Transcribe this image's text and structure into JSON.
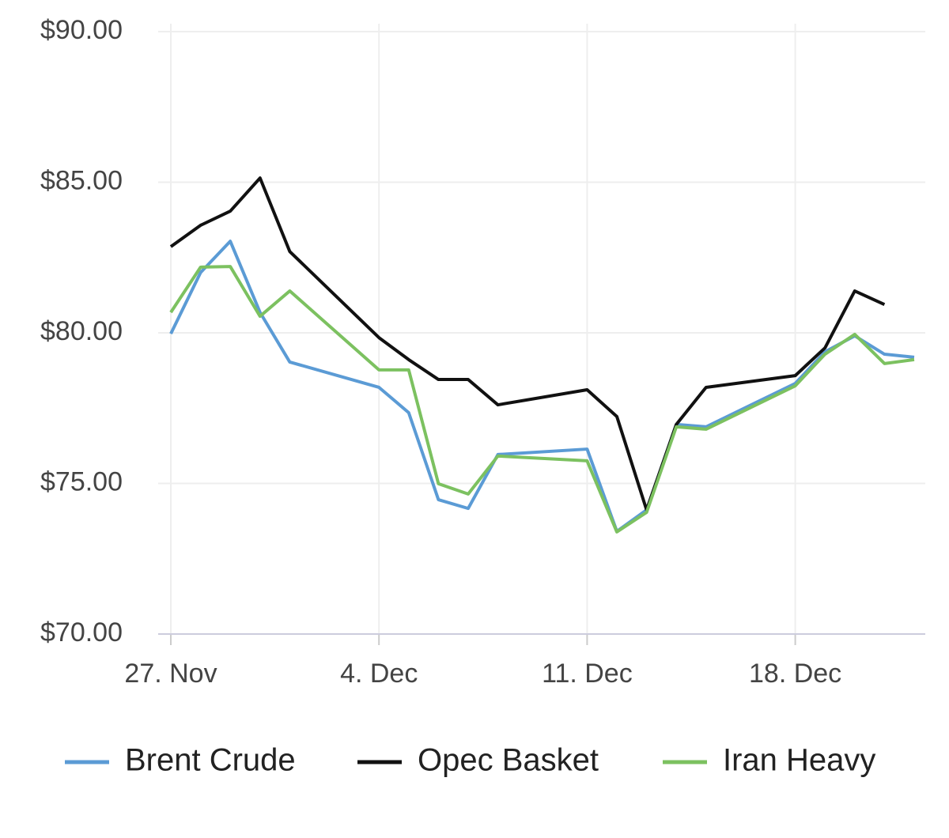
{
  "chart_data": {
    "type": "line",
    "x": [
      "27 Nov",
      "28 Nov",
      "29 Nov",
      "30 Nov",
      "1 Dec",
      "4 Dec",
      "5 Dec",
      "6 Dec",
      "7 Dec",
      "8 Dec",
      "11 Dec",
      "12 Dec",
      "13 Dec",
      "14 Dec",
      "15 Dec",
      "18 Dec",
      "19 Dec",
      "20 Dec",
      "21 Dec",
      "22 Dec"
    ],
    "series": [
      {
        "name": "Brent Crude",
        "color": "#5b9bd5",
        "values": [
          79.97,
          82.0,
          83.04,
          80.68,
          79.03,
          78.19,
          77.35,
          74.46,
          74.17,
          75.96,
          76.14,
          73.41,
          74.12,
          76.96,
          76.88,
          78.32,
          79.37,
          79.9,
          79.29,
          79.19
        ]
      },
      {
        "name": "Opec Basket",
        "color": "#111111",
        "values": [
          82.86,
          83.57,
          84.04,
          85.14,
          82.7,
          79.84,
          79.11,
          78.45,
          78.45,
          77.61,
          78.11,
          77.22,
          74.12,
          76.96,
          78.19,
          78.58,
          79.5,
          81.39,
          80.94,
          null
        ]
      },
      {
        "name": "Iran Heavy",
        "color": "#7cc160",
        "values": [
          80.68,
          82.18,
          82.2,
          80.55,
          81.39,
          78.77,
          78.77,
          74.99,
          74.65,
          75.91,
          75.75,
          73.39,
          74.04,
          76.88,
          76.8,
          78.24,
          79.29,
          79.95,
          78.98,
          79.11
        ]
      }
    ],
    "xlim": [
      "27 Nov",
      "22 Dec"
    ],
    "xticks": [
      {
        "value": "27 Nov",
        "label": "27. Nov"
      },
      {
        "value": "4 Dec",
        "label": "4. Dec"
      },
      {
        "value": "11 Dec",
        "label": "11. Dec"
      },
      {
        "value": "18 Dec",
        "label": "18. Dec"
      }
    ],
    "ylim": [
      70,
      90
    ],
    "yticks": [
      {
        "value": 70,
        "label": "$70.00"
      },
      {
        "value": 75,
        "label": "$75.00"
      },
      {
        "value": 80,
        "label": "$80.00"
      },
      {
        "value": 85,
        "label": "$85.00"
      },
      {
        "value": 90,
        "label": "$90.00"
      }
    ],
    "grid": true
  }
}
